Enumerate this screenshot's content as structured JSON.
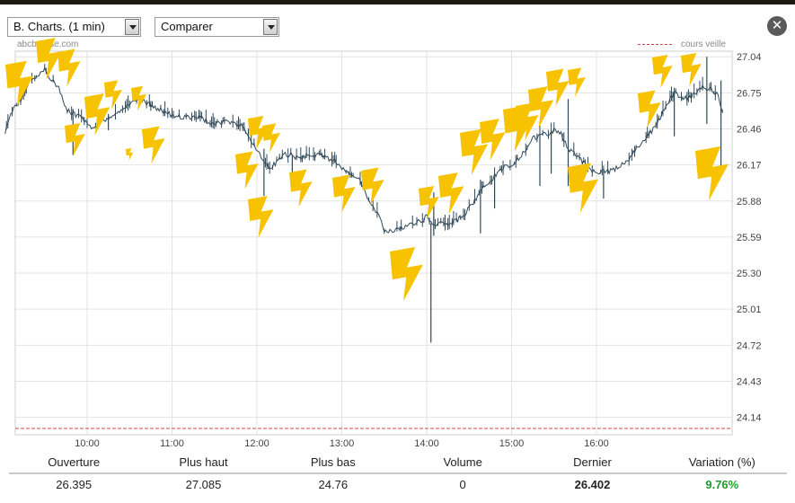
{
  "toolbar": {
    "chart_select": "B. Charts. (1 min)",
    "compare_select": "Comparer"
  },
  "watermark": "abcbourse.com",
  "icons": {
    "close": "close-icon",
    "dropdown_arrow": "chevron-down-icon",
    "decoration": "lightning-bolt-icon"
  },
  "colors": {
    "price_line": "#2f4858",
    "previous_close": "#d04545",
    "grid": "#e3e3e3",
    "bolt": "#f7c200",
    "variation_positive": "#1f9e2c"
  },
  "chart_data": {
    "type": "line",
    "title": "",
    "xlabel": "",
    "ylabel": "",
    "x_ticks": [
      "10:00",
      "11:00",
      "12:00",
      "13:00",
      "14:00",
      "15:00",
      "16:00"
    ],
    "y_ticks": [
      "27.04",
      "26.75",
      "26.46",
      "26.17",
      "25.88",
      "25.59",
      "25.30",
      "25.01",
      "24.72",
      "24.43",
      "24.14"
    ],
    "xlim": [
      "09:00",
      "17:30"
    ],
    "ylim": [
      24.0,
      27.085
    ],
    "grid": true,
    "legend": {
      "position": "top-right",
      "entries": [
        {
          "label": "cours veille",
          "style": "dashed",
          "color": "#d04545"
        }
      ]
    },
    "previous_close": 24.05,
    "series": [
      {
        "values": [
          [
            "09:02",
            26.42
          ],
          [
            "09:05",
            26.55
          ],
          [
            "09:08",
            26.62
          ],
          [
            "09:12",
            26.68
          ],
          [
            "09:16",
            26.75
          ],
          [
            "09:20",
            26.85
          ],
          [
            "09:25",
            26.88
          ],
          [
            "09:30",
            26.95
          ],
          [
            "09:35",
            26.85
          ],
          [
            "09:40",
            26.78
          ],
          [
            "09:45",
            26.62
          ],
          [
            "09:50",
            26.58
          ],
          [
            "09:55",
            26.55
          ],
          [
            "10:00",
            26.5
          ],
          [
            "10:05",
            26.45
          ],
          [
            "10:10",
            26.52
          ],
          [
            "10:15",
            26.55
          ],
          [
            "10:20",
            26.58
          ],
          [
            "10:25",
            26.62
          ],
          [
            "10:30",
            26.65
          ],
          [
            "10:35",
            26.7
          ],
          [
            "10:40",
            26.68
          ],
          [
            "10:45",
            26.65
          ],
          [
            "10:50",
            26.62
          ],
          [
            "10:55",
            26.6
          ],
          [
            "11:00",
            26.57
          ],
          [
            "11:10",
            26.55
          ],
          [
            "11:20",
            26.55
          ],
          [
            "11:30",
            26.5
          ],
          [
            "11:40",
            26.52
          ],
          [
            "11:50",
            26.48
          ],
          [
            "11:55",
            26.38
          ],
          [
            "12:00",
            26.3
          ],
          [
            "12:05",
            26.18
          ],
          [
            "12:10",
            26.15
          ],
          [
            "12:15",
            26.2
          ],
          [
            "12:20",
            26.25
          ],
          [
            "12:25",
            26.25
          ],
          [
            "12:30",
            26.22
          ],
          [
            "12:35",
            26.25
          ],
          [
            "12:40",
            26.25
          ],
          [
            "12:45",
            26.25
          ],
          [
            "12:50",
            26.22
          ],
          [
            "12:55",
            26.2
          ],
          [
            "13:00",
            26.15
          ],
          [
            "13:05",
            26.12
          ],
          [
            "13:10",
            26.08
          ],
          [
            "13:15",
            26.0
          ],
          [
            "13:20",
            25.85
          ],
          [
            "13:25",
            25.78
          ],
          [
            "13:30",
            25.65
          ],
          [
            "13:35",
            25.63
          ],
          [
            "13:40",
            25.65
          ],
          [
            "13:45",
            25.67
          ],
          [
            "13:50",
            25.7
          ],
          [
            "13:55",
            25.72
          ],
          [
            "14:00",
            25.75
          ],
          [
            "14:05",
            25.68
          ],
          [
            "14:10",
            25.7
          ],
          [
            "14:15",
            25.7
          ],
          [
            "14:20",
            25.72
          ],
          [
            "14:25",
            25.75
          ],
          [
            "14:30",
            25.82
          ],
          [
            "14:35",
            25.9
          ],
          [
            "14:40",
            26.0
          ],
          [
            "14:45",
            26.05
          ],
          [
            "14:50",
            26.1
          ],
          [
            "14:55",
            26.15
          ],
          [
            "15:00",
            26.18
          ],
          [
            "15:05",
            26.22
          ],
          [
            "15:10",
            26.3
          ],
          [
            "15:15",
            26.38
          ],
          [
            "15:20",
            26.4
          ],
          [
            "15:25",
            26.42
          ],
          [
            "15:30",
            26.45
          ],
          [
            "15:35",
            26.42
          ],
          [
            "15:40",
            26.3
          ],
          [
            "15:45",
            26.25
          ],
          [
            "15:50",
            26.2
          ],
          [
            "15:55",
            26.15
          ],
          [
            "16:00",
            26.1
          ],
          [
            "16:05",
            26.12
          ],
          [
            "16:10",
            26.12
          ],
          [
            "16:15",
            26.15
          ],
          [
            "16:20",
            26.18
          ],
          [
            "16:25",
            26.25
          ],
          [
            "16:30",
            26.32
          ],
          [
            "16:35",
            26.4
          ],
          [
            "16:40",
            26.45
          ],
          [
            "16:45",
            26.55
          ],
          [
            "16:50",
            26.65
          ],
          [
            "16:55",
            26.75
          ],
          [
            "17:00",
            26.72
          ],
          [
            "17:05",
            26.7
          ],
          [
            "17:10",
            26.75
          ],
          [
            "17:15",
            26.8
          ],
          [
            "17:20",
            26.78
          ],
          [
            "17:25",
            26.75
          ],
          [
            "17:30",
            26.55
          ]
        ]
      }
    ],
    "spikes": [
      [
        "09:50",
        26.25,
        26.62
      ],
      [
        "10:15",
        26.45,
        26.58
      ],
      [
        "12:05",
        25.92,
        26.3
      ],
      [
        "12:25",
        26.0,
        26.25
      ],
      [
        "14:03",
        24.74,
        25.7
      ],
      [
        "14:05",
        25.6,
        25.95
      ],
      [
        "14:38",
        25.62,
        26.05
      ],
      [
        "14:48",
        25.82,
        26.1
      ],
      [
        "15:20",
        26.0,
        26.42
      ],
      [
        "15:28",
        26.1,
        26.45
      ],
      [
        "15:40",
        26.0,
        26.7
      ],
      [
        "16:05",
        25.9,
        26.12
      ],
      [
        "16:55",
        26.4,
        26.75
      ],
      [
        "17:18",
        26.5,
        27.04
      ],
      [
        "17:28",
        26.12,
        26.85
      ]
    ]
  },
  "stats": {
    "headers": [
      "Ouverture",
      "Plus haut",
      "Plus bas",
      "Volume",
      "Dernier",
      "Variation (%)"
    ],
    "values": [
      "26.395",
      "27.085",
      "24.76",
      "0",
      "26.402",
      "9.76%"
    ]
  }
}
